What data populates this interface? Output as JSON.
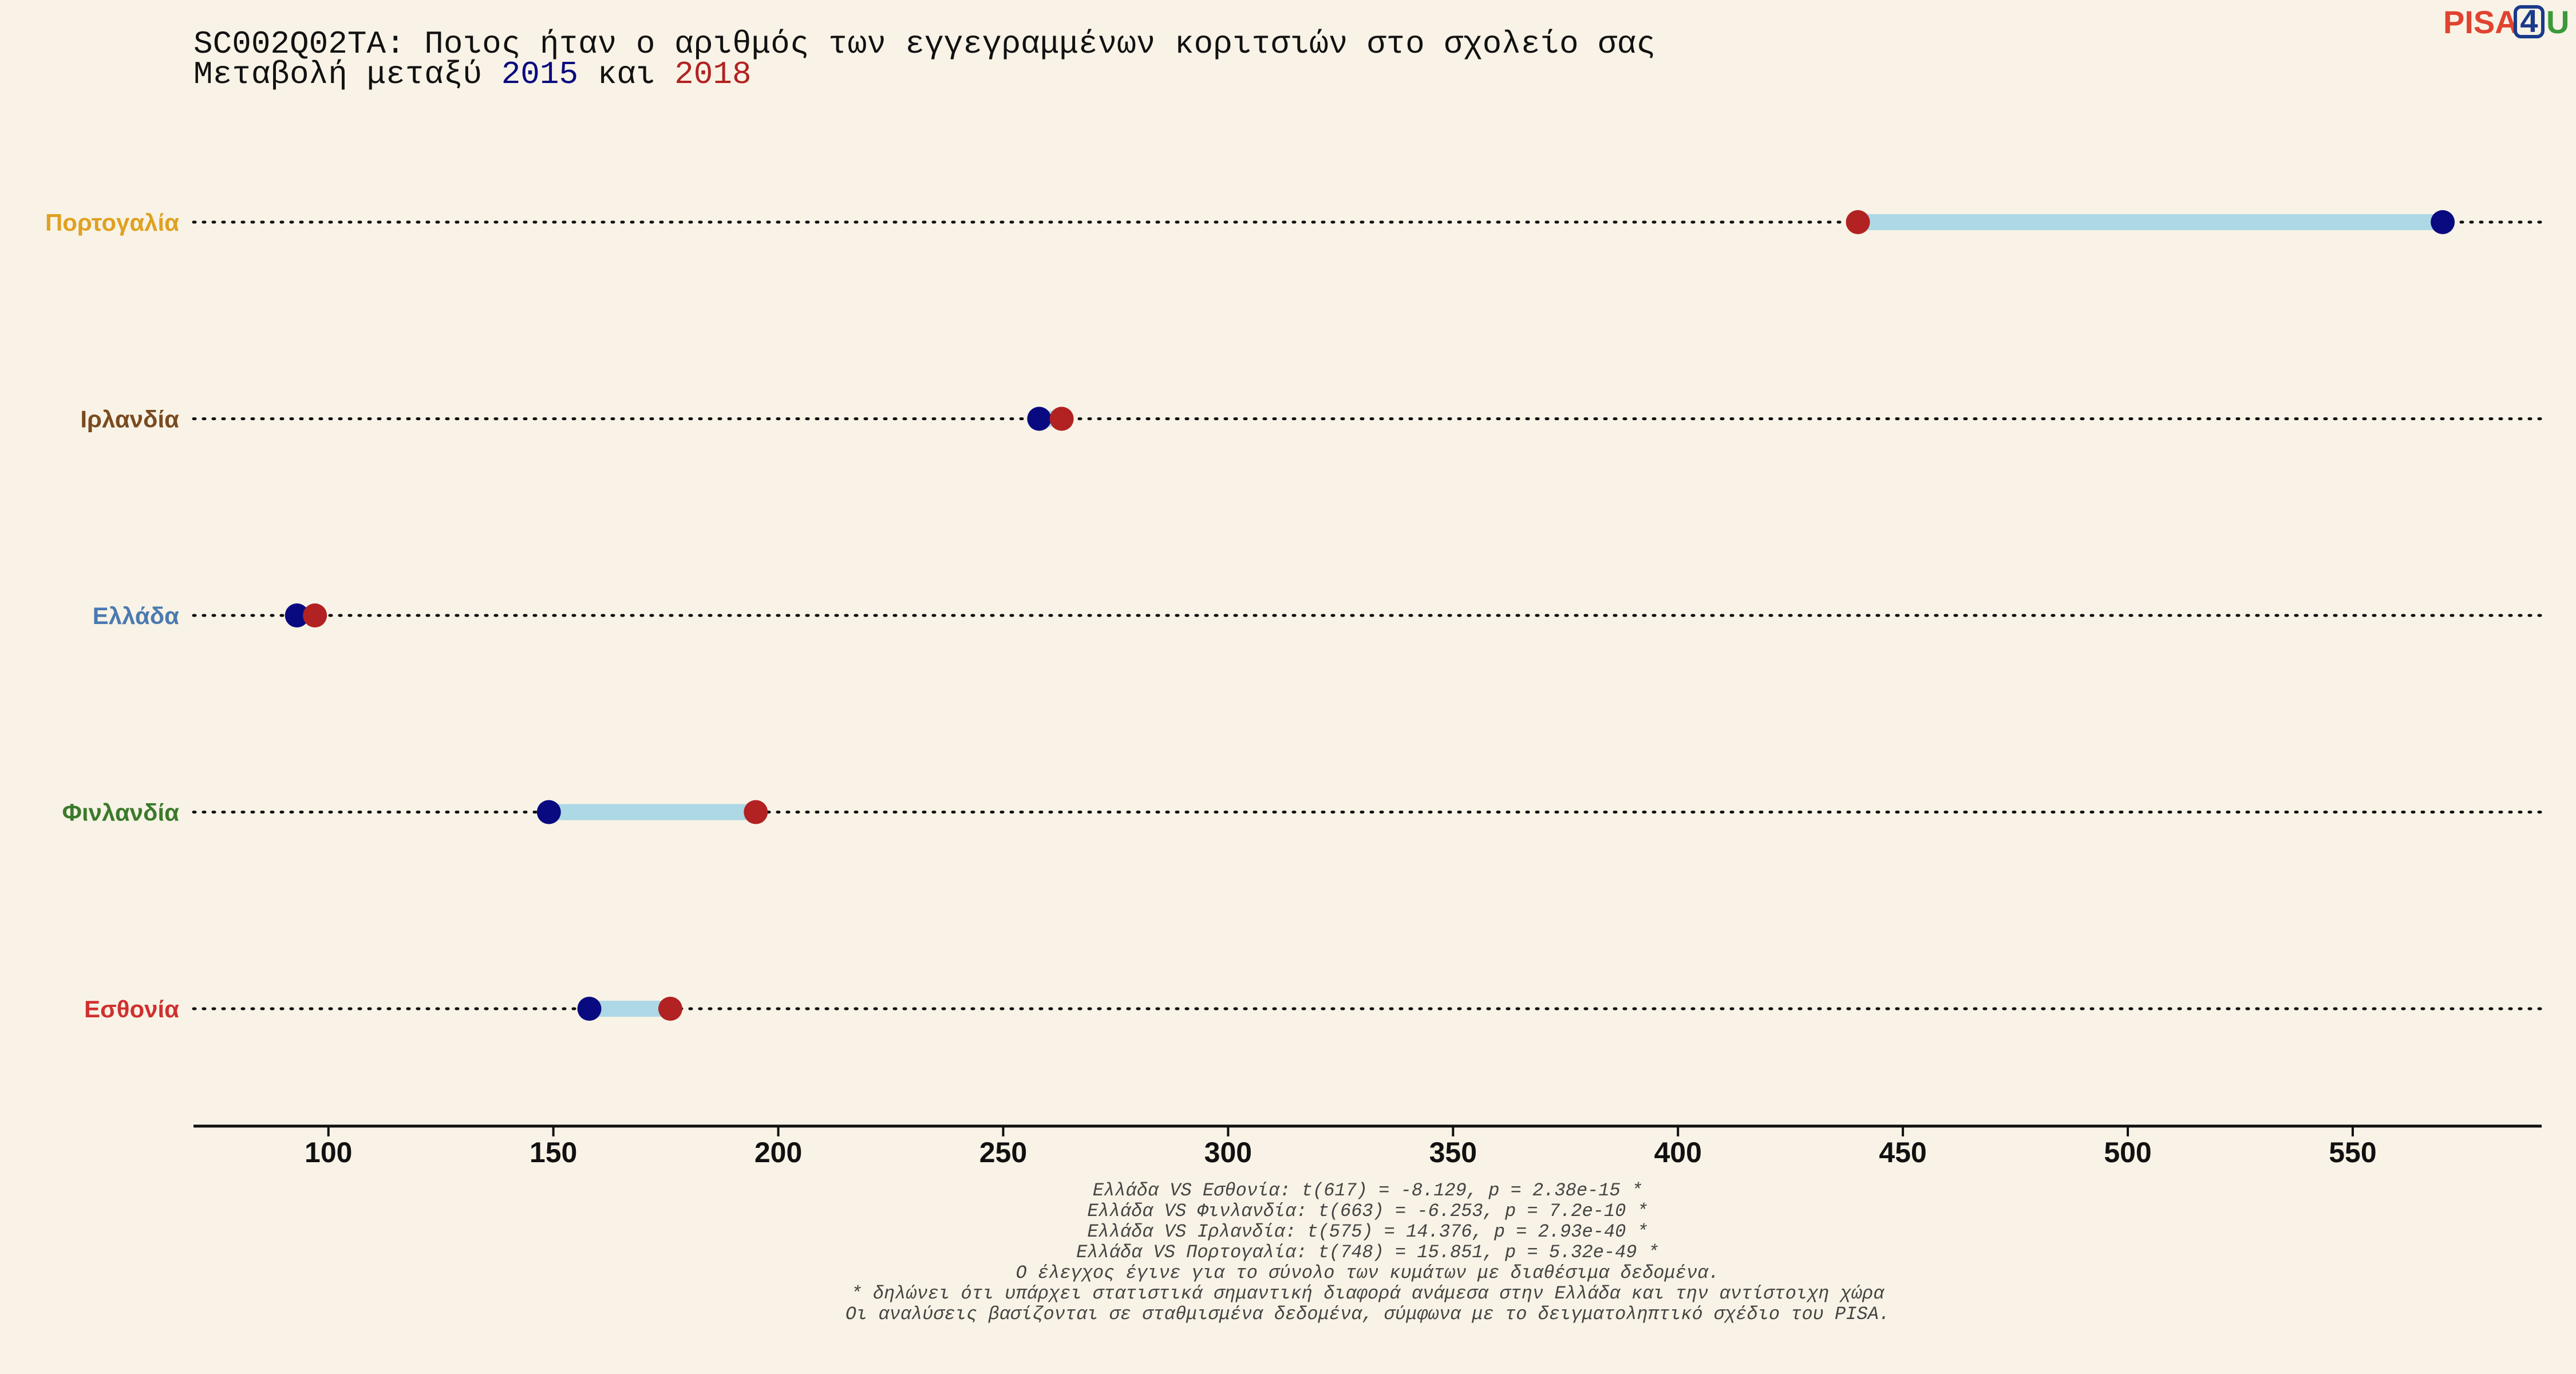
{
  "logo": {
    "left": "PISA",
    "box": "4",
    "right": "U",
    "colors": {
      "left": "#e0432f",
      "box": "#1a3a8a",
      "right": "#3a9a3a"
    }
  },
  "chart_data": {
    "type": "dumbbell",
    "title": "SC002Q02TA: Ποιος ήταν ο αριθμός των εγγεγραμμένων κοριτσιών στο σχολείο σας",
    "subtitle": {
      "prefix": "Μεταβολή μεταξύ ",
      "year1": "2015",
      "middle": " και ",
      "year2": "2018"
    },
    "series": [
      {
        "year": "2015",
        "color": "#0a0a80"
      },
      {
        "year": "2018",
        "color": "#b22222"
      }
    ],
    "range_bar_color": "#add8e6",
    "xlim": [
      70,
      592
    ],
    "xticks": [
      100,
      150,
      200,
      250,
      300,
      350,
      400,
      450,
      500,
      550
    ],
    "countries": [
      {
        "name": "Πορτογαλία",
        "color": "#e0a020",
        "v2015": 570,
        "v2018": 440
      },
      {
        "name": "Ιρλανδία",
        "color": "#7a4a20",
        "v2015": 258,
        "v2018": 263
      },
      {
        "name": "Ελλάδα",
        "color": "#4a7ab0",
        "v2015": 93,
        "v2018": 97
      },
      {
        "name": "Φινλανδία",
        "color": "#3a7a2a",
        "v2015": 149,
        "v2018": 195
      },
      {
        "name": "Εσθονία",
        "color": "#d03030",
        "v2015": 158,
        "v2018": 176
      }
    ],
    "notes": [
      "Ελλάδα VS Εσθονία: t(617) = -8.129, p = 2.38e-15 *",
      "Ελλάδα VS Φινλανδία: t(663) = -6.253, p = 7.2e-10 *",
      "Ελλάδα VS Ιρλανδία: t(575) = 14.376, p = 2.93e-40 *",
      "Ελλάδα VS Πορτογαλία: t(748) = 15.851, p = 5.32e-49 *",
      "Ο έλεγχος έγινε για το σύνολο των κυμάτων με διαθέσιμα δεδομένα.",
      "* δηλώνει ότι υπάρχει στατιστικά σημαντική διαφορά ανάμεσα στην Ελλάδα και την αντίστοιχη χώρα",
      "Οι αναλύσεις βασίζονται σε σταθμισμένα δεδομένα, σύμφωνα με το δειγματοληπτικό σχέδιο του PISA."
    ]
  }
}
